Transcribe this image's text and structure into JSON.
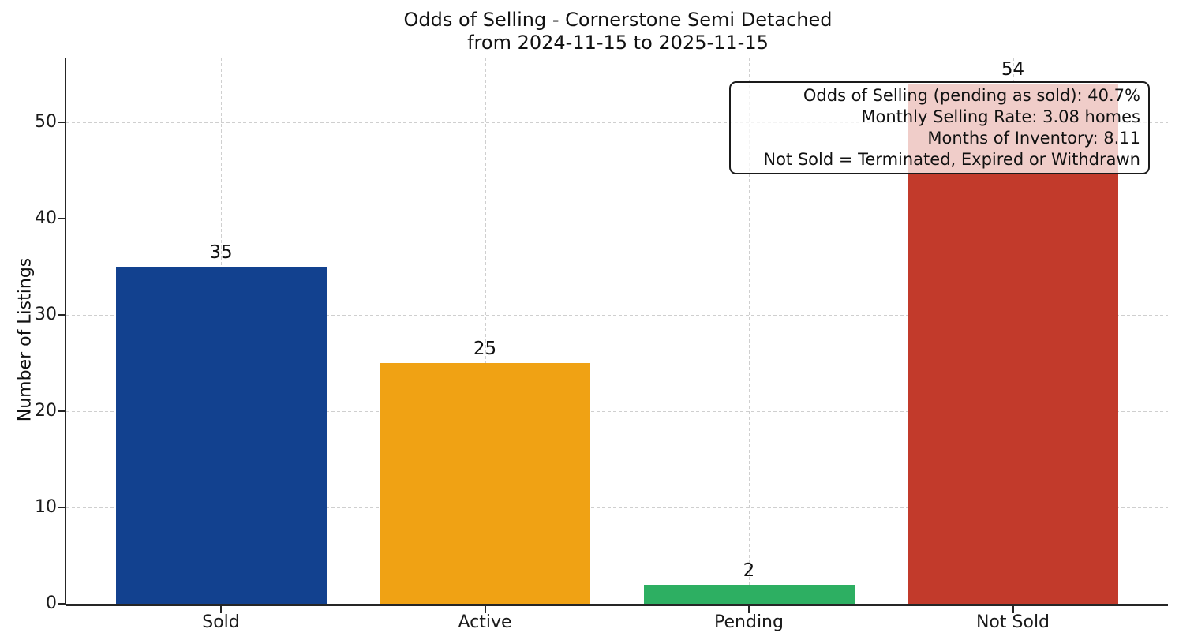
{
  "chart_data": {
    "type": "bar",
    "title": "Odds of Selling - Cornerstone Semi Detached",
    "subtitle": "from 2024-11-15 to 2025-11-15",
    "categories": [
      "Sold",
      "Active",
      "Pending",
      "Not Sold"
    ],
    "values": [
      35,
      25,
      2,
      54
    ],
    "value_labels": [
      "35",
      "25",
      "2",
      "54"
    ],
    "bar_colors": [
      "#12418f",
      "#f0a214",
      "#2daf62",
      "#c23a2b"
    ],
    "xlabel": "",
    "ylabel": "Number of Listings",
    "yticks": [
      0,
      10,
      20,
      30,
      40,
      50
    ],
    "ylim": [
      0,
      56.7
    ],
    "grid": "dashed",
    "grid_color": "#cfcfcf",
    "axis_color": "#262626",
    "text_color": "#111111",
    "legend_position": "none",
    "annotation": {
      "align": "right",
      "lines": [
        "Odds of Selling (pending as sold): 40.7%",
        "Monthly Selling Rate: 3.08 homes",
        "Months of Inventory: 8.11",
        "Not Sold = Terminated, Expired or Withdrawn"
      ]
    }
  }
}
